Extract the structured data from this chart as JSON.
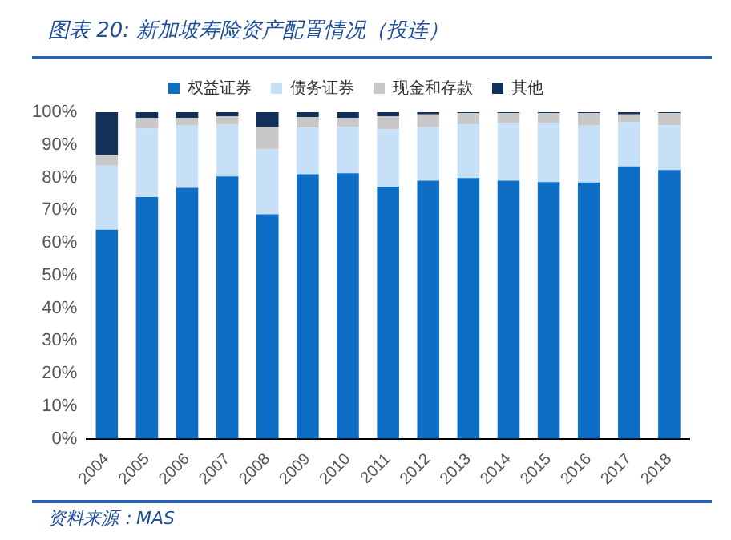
{
  "chart_data": {
    "type": "bar",
    "title": "图表 20:  新加坡寿险资产配置情况（投连）",
    "stacked": true,
    "legend": "top",
    "grid": false,
    "categories": [
      "2004",
      "2005",
      "2006",
      "2007",
      "2008",
      "2009",
      "2010",
      "2011",
      "2012",
      "2013",
      "2014",
      "2015",
      "2016",
      "2017",
      "2018"
    ],
    "series": [
      {
        "name": "权益证券",
        "color": "#0e6dc5",
        "values": [
          64,
          74,
          76.8,
          80.3,
          68.7,
          81,
          81.3,
          77.2,
          79,
          79.8,
          79,
          78.6,
          78.5,
          83.4,
          82.3
        ]
      },
      {
        "name": "债务证券",
        "color": "#c5e0f7",
        "values": [
          19.6,
          21,
          19.1,
          15.9,
          19.9,
          14.2,
          14.2,
          17.5,
          16.4,
          16.4,
          17.7,
          18.1,
          17.4,
          13.6,
          13.7
        ]
      },
      {
        "name": "现金和存款",
        "color": "#c8c8c8",
        "values": [
          3.4,
          3.3,
          2.4,
          2.6,
          6.9,
          3.3,
          2.8,
          4.1,
          3.9,
          3.5,
          3,
          3,
          3.8,
          2.3,
          3.7
        ]
      },
      {
        "name": "其他",
        "color": "#12305a",
        "values": [
          13,
          1.7,
          1.7,
          1.2,
          4.5,
          1.5,
          1.7,
          1.2,
          0.7,
          0.3,
          0.3,
          0.3,
          0.3,
          0.7,
          0.3
        ]
      }
    ],
    "ylim": [
      0,
      100
    ],
    "yticks": [
      {
        "value": 0,
        "label": "0%"
      },
      {
        "value": 10,
        "label": "10%"
      },
      {
        "value": 20,
        "label": "20%"
      },
      {
        "value": 30,
        "label": "30%"
      },
      {
        "value": 40,
        "label": "40%"
      },
      {
        "value": 50,
        "label": "50%"
      },
      {
        "value": 60,
        "label": "60%"
      },
      {
        "value": 70,
        "label": "70%"
      },
      {
        "value": 80,
        "label": "80%"
      },
      {
        "value": 90,
        "label": "90%"
      },
      {
        "value": 100,
        "label": "100%"
      }
    ],
    "annotations": [
      "资料来源：MAS"
    ]
  }
}
